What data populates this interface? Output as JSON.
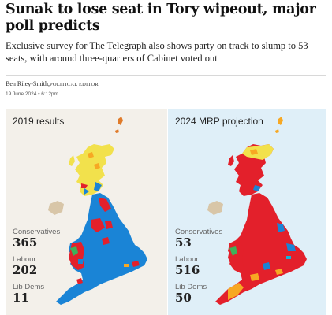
{
  "article": {
    "headline": "Sunak to lose seat in Tory wipeout, major poll predicts",
    "standfirst": "Exclusive survey for The Telegraph also shows party on track to slump to 53 seats, with around three-quarters of Cabinet voted out",
    "byline": {
      "author": "Ben Riley-Smith,",
      "role": "POLITICAL EDITOR"
    },
    "date": "19 June 2024 • 6:12pm"
  },
  "graphic": {
    "colors": {
      "conservative": "#1a84d6",
      "labour": "#e3202b",
      "libdem": "#f7a823",
      "snp": "#f2e14c",
      "plaid": "#3fb15a",
      "reform": "#13b3d8",
      "left_bg": "#f3f0ea",
      "right_bg": "#dfeff8"
    },
    "panels": [
      {
        "title": "2019 results",
        "stats": [
          {
            "label": "Conservatives",
            "value": "365"
          },
          {
            "label": "Labour",
            "value": "202"
          },
          {
            "label": "Lib Dems",
            "value": "11"
          }
        ]
      },
      {
        "title": "2024 MRP projection",
        "stats": [
          {
            "label": "Conservatives",
            "value": "53"
          },
          {
            "label": "Labour",
            "value": "516"
          },
          {
            "label": "Lib Dems",
            "value": "50"
          }
        ]
      }
    ]
  }
}
